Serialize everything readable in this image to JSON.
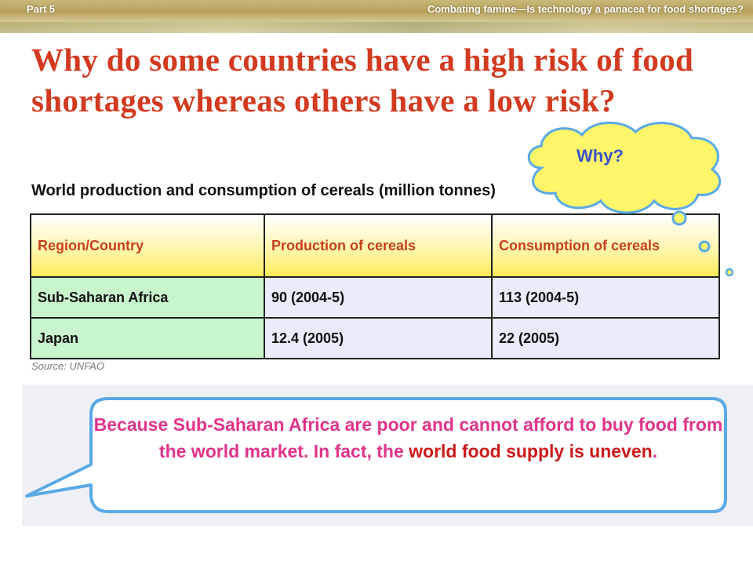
{
  "header": {
    "part": "Part 5",
    "topic": "Combating famine—Is technology a panacea for food shortages?"
  },
  "title": "Why do some countries have a high risk of food shortages whereas others have a low risk?",
  "callout": {
    "text": "Why?"
  },
  "subtitle": "World production and consumption of cereals (million tonnes)",
  "table": {
    "headers": [
      "Region/Country",
      "Production of cereals",
      "Consumption of cereals"
    ],
    "rows": [
      [
        "Sub-Saharan Africa",
        "90 (2004-5)",
        "113 (2004-5)"
      ],
      [
        "Japan",
        "12.4 (2005)",
        "22 (2005)"
      ]
    ]
  },
  "source": "Source: UNFAO",
  "answer": {
    "part1": "Because Sub-Saharan Africa are poor and cannot afford to buy food from the world market. In fact, the ",
    "emphasis": "world food supply is uneven",
    "part2": "."
  },
  "colors": {
    "title": "#d23a20",
    "header_text": "#c8401a",
    "row_label_bg": "#c8f5cc",
    "row_cell_bg": "#e9ecfb",
    "answer_text": "#e0338a",
    "answer_emphasis": "#cc1a1a",
    "callout_fill": "#fdf56a",
    "callout_text": "#3a52c8",
    "speech_border": "#5aa9e6"
  }
}
